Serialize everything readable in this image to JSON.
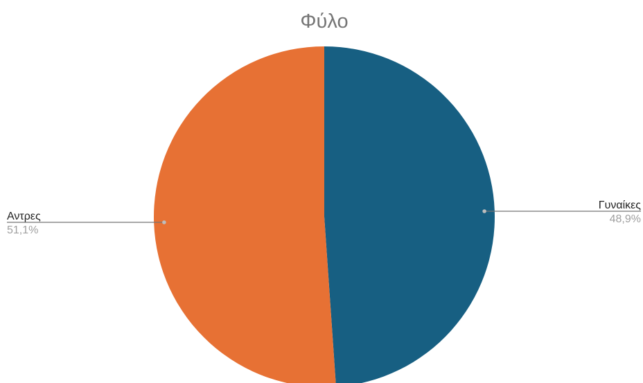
{
  "chart_data": {
    "type": "pie",
    "title": "Φύλο",
    "start": "top",
    "direction": "clockwise",
    "slices": [
      {
        "label": "Γυναίκες",
        "value": 48.9,
        "value_label": "48,9%",
        "color": "#175f82"
      },
      {
        "label": "Αντρες",
        "value": 51.1,
        "value_label": "51,1%",
        "color": "#e77134"
      }
    ],
    "leader_line_color": "#757575",
    "legend": "none"
  }
}
